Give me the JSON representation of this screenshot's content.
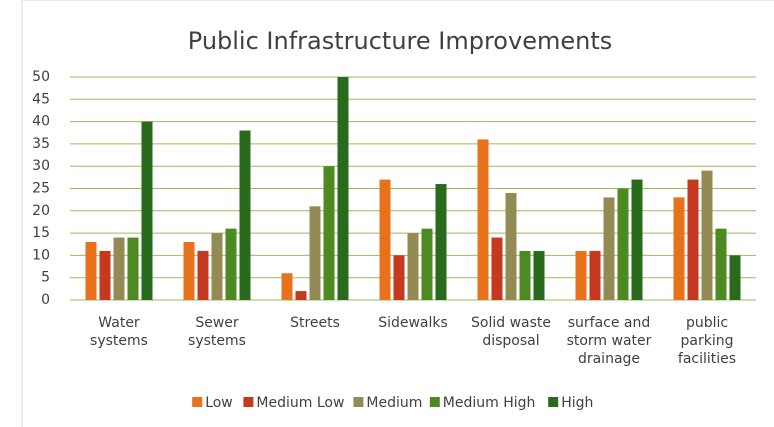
{
  "chart_data": {
    "type": "bar",
    "title": "Public Infrastructure Improvements",
    "categories": [
      "Water systems",
      "Sewer systems",
      "Streets",
      "Sidewalks",
      "Solid waste disposal",
      "surface and storm water drainage",
      "public parking facilities"
    ],
    "series": [
      {
        "name": "Low",
        "color": "#e8711c",
        "values": [
          13,
          13,
          6,
          27,
          36,
          11,
          23
        ]
      },
      {
        "name": "Medium Low",
        "color": "#c4391f",
        "values": [
          11,
          11,
          2,
          10,
          14,
          11,
          27
        ]
      },
      {
        "name": "Medium",
        "color": "#948a54",
        "values": [
          14,
          15,
          21,
          15,
          24,
          23,
          29
        ]
      },
      {
        "name": "Medium High",
        "color": "#4e8a22",
        "values": [
          14,
          16,
          30,
          16,
          11,
          25,
          16
        ]
      },
      {
        "name": "High",
        "color": "#2a6a1c",
        "values": [
          40,
          38,
          50,
          26,
          11,
          27,
          10
        ]
      }
    ],
    "ylim": [
      0,
      50
    ],
    "yticks": [
      0,
      5,
      10,
      15,
      20,
      25,
      30,
      35,
      40,
      45,
      50
    ],
    "grid": true
  }
}
